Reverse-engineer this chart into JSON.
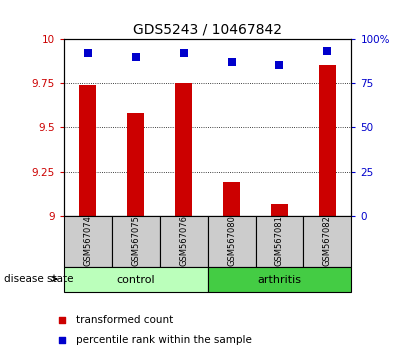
{
  "title": "GDS5243 / 10467842",
  "samples": [
    "GSM567074",
    "GSM567075",
    "GSM567076",
    "GSM567080",
    "GSM567081",
    "GSM567082"
  ],
  "red_values": [
    9.74,
    9.58,
    9.75,
    9.19,
    9.07,
    9.85
  ],
  "blue_values": [
    92,
    90,
    92,
    87,
    85,
    93
  ],
  "ylim_left": [
    9.0,
    10.0
  ],
  "ylim_right": [
    0,
    100
  ],
  "yticks_left": [
    9.0,
    9.25,
    9.5,
    9.75,
    10.0
  ],
  "yticks_right": [
    0,
    25,
    50,
    75,
    100
  ],
  "ytick_labels_left": [
    "9",
    "9.25",
    "9.5",
    "9.75",
    "10"
  ],
  "ytick_labels_right": [
    "0",
    "25",
    "50",
    "75",
    "100%"
  ],
  "bar_color": "#cc0000",
  "dot_color": "#0000cc",
  "control_color": "#bbffbb",
  "arthritis_color": "#44cc44",
  "label_bg_color": "#cccccc",
  "bar_width": 0.35,
  "dot_size": 30,
  "legend_red_label": "transformed count",
  "legend_blue_label": "percentile rank within the sample",
  "disease_state_label": "disease state",
  "control_label": "control",
  "arthritis_label": "arthritis",
  "n_control": 3,
  "n_arthritis": 3
}
